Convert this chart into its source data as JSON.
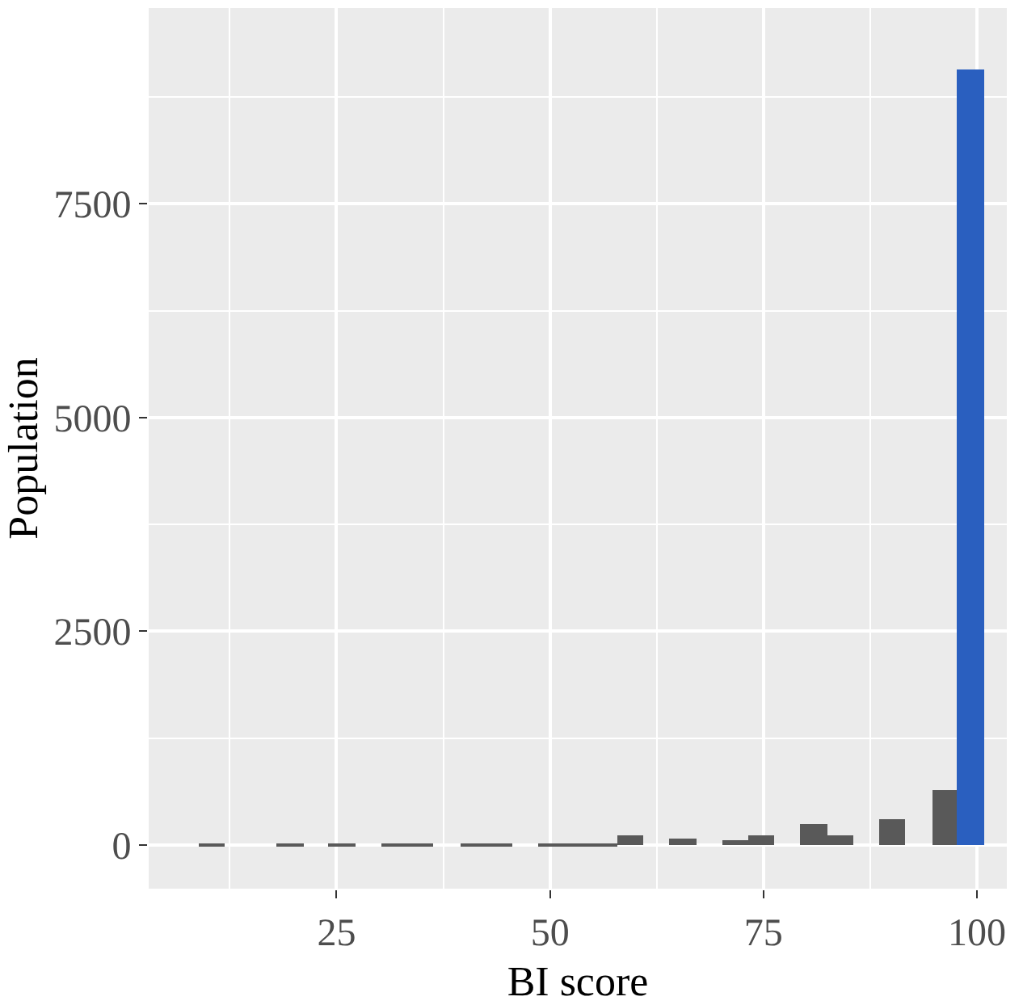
{
  "chart_data": {
    "type": "histogram",
    "xlabel": "BI score",
    "ylabel": "Population",
    "bins": [
      8.8,
      11.9,
      18.0,
      21.1,
      24.1,
      27.2,
      30.3,
      33.3,
      36.4,
      39.5,
      42.5,
      45.6,
      48.7,
      51.7,
      54.8,
      57.9,
      60.9,
      64.0,
      67.1,
      70.1,
      73.2,
      76.3,
      79.3,
      82.4,
      85.5,
      88.5,
      91.6,
      94.7,
      97.7,
      100.8
    ],
    "values": [
      5,
      0,
      5,
      0,
      5,
      0,
      5,
      5,
      0,
      20,
      20,
      0,
      15,
      5,
      15,
      115,
      0,
      80,
      0,
      55,
      120,
      0,
      250,
      115,
      0,
      300,
      0,
      640,
      9080
    ],
    "colors": [
      "#595959",
      "#595959",
      "#595959",
      "#595959",
      "#595959",
      "#595959",
      "#595959",
      "#595959",
      "#595959",
      "#595959",
      "#595959",
      "#595959",
      "#595959",
      "#595959",
      "#595959",
      "#595959",
      "#595959",
      "#595959",
      "#595959",
      "#595959",
      "#595959",
      "#595959",
      "#595959",
      "#595959",
      "#595959",
      "#595959",
      "#595959",
      "#595959",
      "#2a5fbf"
    ],
    "xlim": [
      3,
      103.5
    ],
    "xticks": [
      25,
      50,
      75,
      100
    ],
    "ylim": [
      -510,
      9790
    ],
    "yticks": [
      0,
      2500,
      5000,
      7500
    ],
    "grid": true
  }
}
